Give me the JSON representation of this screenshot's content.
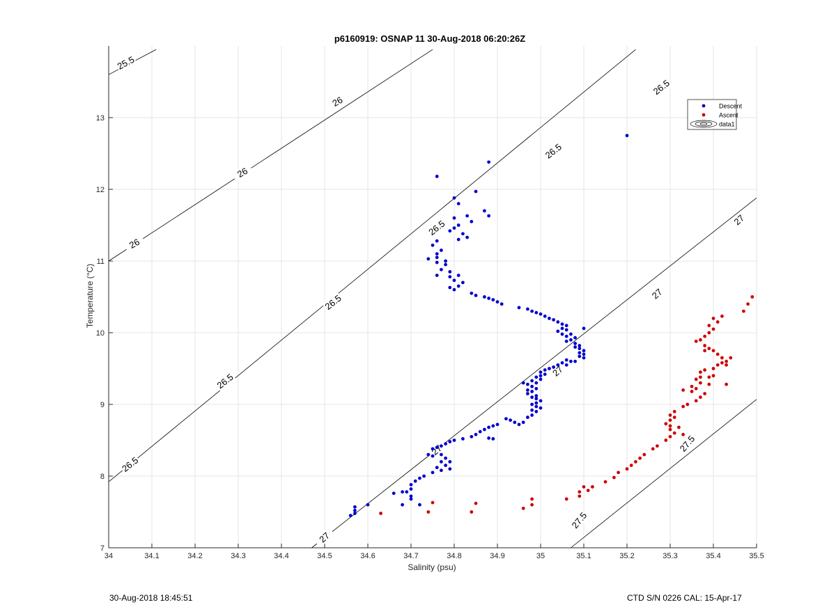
{
  "chart_data": {
    "type": "scatter",
    "title": "p6160919: OSNAP 11 30-Aug-2018 06:20:26Z",
    "xlabel": "Salinity (psu)",
    "ylabel": "Temperature (°C)",
    "xlim": [
      34,
      35.5
    ],
    "ylim": [
      7,
      14
    ],
    "xticks": [
      34,
      34.1,
      34.2,
      34.3,
      34.4,
      34.5,
      34.6,
      34.7,
      34.8,
      34.9,
      35,
      35.1,
      35.2,
      35.3,
      35.4,
      35.5
    ],
    "xtick_labels": [
      "34",
      "34.1",
      "34.2",
      "34.3",
      "34.4",
      "34.5",
      "34.6",
      "34.7",
      "34.8",
      "34.9",
      "35",
      "35.1",
      "35.2",
      "35.3",
      "35.4",
      "35.5"
    ],
    "yticks": [
      7,
      8,
      9,
      10,
      11,
      12,
      13
    ],
    "ytick_labels": [
      "7",
      "8",
      "9",
      "10",
      "11",
      "12",
      "13"
    ],
    "grid": true,
    "legend": {
      "placement": "top-right",
      "entries": [
        {
          "label": "Descent",
          "color": "#0000d0",
          "marker": "dot"
        },
        {
          "label": "Ascent",
          "color": "#d00000",
          "marker": "dot"
        },
        {
          "label": "data1",
          "color": "#000000",
          "marker": "contour"
        }
      ]
    },
    "contours": [
      {
        "value": "25.5",
        "points": [
          [
            34,
            13.6
          ],
          [
            34.11,
            13.95
          ]
        ]
      },
      {
        "value": "26",
        "points": [
          [
            34,
            11
          ],
          [
            34.75,
            13.95
          ]
        ]
      },
      {
        "value": "26.5",
        "points": [
          [
            34,
            7.92
          ],
          [
            35.22,
            13.95
          ]
        ]
      },
      {
        "value": "27",
        "points": [
          [
            34.47,
            7
          ],
          [
            35.5,
            11.88
          ]
        ]
      },
      {
        "value": "27.5",
        "points": [
          [
            35.07,
            7
          ],
          [
            35.5,
            9.07
          ]
        ]
      }
    ],
    "contour_labels": [
      {
        "text": "25.5",
        "x": 34.04,
        "y": 13.76,
        "angle": -28
      },
      {
        "text": "26",
        "x": 34.06,
        "y": 11.24,
        "angle": -30
      },
      {
        "text": "26",
        "x": 34.31,
        "y": 12.23,
        "angle": -30
      },
      {
        "text": "26",
        "x": 34.53,
        "y": 13.22,
        "angle": -30
      },
      {
        "text": "26.5",
        "x": 34.05,
        "y": 8.16,
        "angle": -38
      },
      {
        "text": "26.5",
        "x": 34.27,
        "y": 9.32,
        "angle": -38
      },
      {
        "text": "26.5",
        "x": 34.52,
        "y": 10.42,
        "angle": -38
      },
      {
        "text": "26.5",
        "x": 34.76,
        "y": 11.46,
        "angle": -38
      },
      {
        "text": "26.5",
        "x": 35.03,
        "y": 12.53,
        "angle": -38
      },
      {
        "text": "26.5",
        "x": 35.28,
        "y": 13.42,
        "angle": -38
      },
      {
        "text": "27",
        "x": 34.5,
        "y": 7.14,
        "angle": -42
      },
      {
        "text": "27",
        "x": 34.76,
        "y": 8.36,
        "angle": -42
      },
      {
        "text": "27",
        "x": 35.04,
        "y": 9.46,
        "angle": -42
      },
      {
        "text": "27",
        "x": 35.27,
        "y": 10.54,
        "angle": -42
      },
      {
        "text": "27",
        "x": 35.46,
        "y": 11.57,
        "angle": -42
      },
      {
        "text": "27.5",
        "x": 35.09,
        "y": 7.38,
        "angle": -50
      },
      {
        "text": "27.5",
        "x": 35.34,
        "y": 8.45,
        "angle": -50
      }
    ],
    "series": [
      {
        "name": "Descent",
        "color": "#0000d0",
        "points": [
          [
            35.2,
            12.75
          ],
          [
            34.88,
            12.38
          ],
          [
            34.76,
            12.18
          ],
          [
            34.85,
            11.97
          ],
          [
            34.8,
            11.88
          ],
          [
            34.81,
            11.8
          ],
          [
            34.87,
            11.7
          ],
          [
            34.83,
            11.63
          ],
          [
            34.8,
            11.6
          ],
          [
            34.88,
            11.63
          ],
          [
            34.84,
            11.55
          ],
          [
            34.81,
            11.5
          ],
          [
            34.8,
            11.46
          ],
          [
            34.79,
            11.42
          ],
          [
            34.82,
            11.38
          ],
          [
            34.83,
            11.33
          ],
          [
            34.81,
            11.3
          ],
          [
            34.76,
            11.28
          ],
          [
            34.75,
            11.22
          ],
          [
            34.77,
            11.15
          ],
          [
            34.76,
            11.1
          ],
          [
            34.76,
            11.05
          ],
          [
            34.74,
            11.03
          ],
          [
            34.78,
            11.0
          ],
          [
            34.76,
            10.98
          ],
          [
            34.78,
            10.95
          ],
          [
            34.77,
            10.88
          ],
          [
            34.79,
            10.85
          ],
          [
            34.76,
            10.8
          ],
          [
            34.79,
            10.78
          ],
          [
            34.81,
            10.8
          ],
          [
            34.8,
            10.73
          ],
          [
            34.82,
            10.7
          ],
          [
            34.81,
            10.65
          ],
          [
            34.79,
            10.63
          ],
          [
            34.8,
            10.6
          ],
          [
            34.84,
            10.55
          ],
          [
            34.85,
            10.52
          ],
          [
            34.87,
            10.5
          ],
          [
            34.88,
            10.48
          ],
          [
            34.89,
            10.46
          ],
          [
            34.9,
            10.43
          ],
          [
            34.91,
            10.4
          ],
          [
            34.95,
            10.35
          ],
          [
            34.97,
            10.33
          ],
          [
            34.98,
            10.3
          ],
          [
            34.99,
            10.28
          ],
          [
            35.0,
            10.26
          ],
          [
            35.01,
            10.23
          ],
          [
            35.02,
            10.2
          ],
          [
            35.03,
            10.18
          ],
          [
            35.04,
            10.15
          ],
          [
            35.05,
            10.12
          ],
          [
            35.06,
            10.1
          ],
          [
            35.05,
            10.06
          ],
          [
            35.06,
            10.04
          ],
          [
            35.04,
            10.02
          ],
          [
            35.05,
            9.98
          ],
          [
            35.07,
            9.98
          ],
          [
            35.06,
            9.95
          ],
          [
            35.08,
            9.93
          ],
          [
            35.07,
            9.9
          ],
          [
            35.06,
            9.88
          ],
          [
            35.08,
            9.85
          ],
          [
            35.09,
            9.82
          ],
          [
            35.08,
            9.8
          ],
          [
            35.09,
            9.78
          ],
          [
            35.1,
            9.75
          ],
          [
            35.09,
            9.72
          ],
          [
            35.1,
            9.7
          ],
          [
            35.09,
            9.67
          ],
          [
            35.1,
            9.65
          ],
          [
            35.1,
            10.06
          ],
          [
            35.08,
            9.6
          ],
          [
            35.06,
            9.62
          ],
          [
            35.07,
            9.6
          ],
          [
            35.05,
            9.58
          ],
          [
            35.06,
            9.55
          ],
          [
            35.04,
            9.55
          ],
          [
            35.03,
            9.52
          ],
          [
            35.02,
            9.5
          ],
          [
            35.01,
            9.48
          ],
          [
            35.0,
            9.45
          ],
          [
            35.01,
            9.42
          ],
          [
            35.0,
            9.4
          ],
          [
            34.99,
            9.38
          ],
          [
            35.0,
            9.35
          ],
          [
            34.98,
            9.33
          ],
          [
            34.99,
            9.3
          ],
          [
            34.97,
            9.28
          ],
          [
            34.98,
            9.25
          ],
          [
            34.99,
            9.22
          ],
          [
            34.97,
            9.2
          ],
          [
            34.96,
            9.3
          ],
          [
            34.98,
            9.18
          ],
          [
            34.97,
            9.15
          ],
          [
            34.99,
            9.12
          ],
          [
            34.98,
            9.1
          ],
          [
            34.99,
            9.08
          ],
          [
            35.0,
            9.05
          ],
          [
            34.99,
            9.02
          ],
          [
            34.98,
            9.0
          ],
          [
            34.99,
            8.97
          ],
          [
            35.0,
            8.95
          ],
          [
            34.98,
            8.92
          ],
          [
            34.99,
            8.9
          ],
          [
            34.98,
            8.85
          ],
          [
            34.97,
            8.82
          ],
          [
            34.96,
            8.75
          ],
          [
            34.95,
            8.72
          ],
          [
            34.94,
            8.75
          ],
          [
            34.93,
            8.78
          ],
          [
            34.92,
            8.8
          ],
          [
            34.9,
            8.72
          ],
          [
            34.89,
            8.7
          ],
          [
            34.88,
            8.68
          ],
          [
            34.87,
            8.65
          ],
          [
            34.86,
            8.62
          ],
          [
            34.85,
            8.58
          ],
          [
            34.89,
            8.52
          ],
          [
            34.88,
            8.53
          ],
          [
            34.84,
            8.55
          ],
          [
            34.82,
            8.52
          ],
          [
            34.8,
            8.5
          ],
          [
            34.79,
            8.48
          ],
          [
            34.78,
            8.45
          ],
          [
            34.77,
            8.42
          ],
          [
            34.76,
            8.4
          ],
          [
            34.75,
            8.38
          ],
          [
            34.74,
            8.3
          ],
          [
            34.75,
            8.28
          ],
          [
            34.77,
            8.3
          ],
          [
            34.78,
            8.25
          ],
          [
            34.79,
            8.2
          ],
          [
            34.77,
            8.2
          ],
          [
            34.78,
            8.15
          ],
          [
            34.76,
            8.12
          ],
          [
            34.79,
            8.1
          ],
          [
            34.77,
            8.08
          ],
          [
            34.75,
            8.05
          ],
          [
            34.73,
            8.0
          ],
          [
            34.72,
            7.97
          ],
          [
            34.71,
            7.93
          ],
          [
            34.7,
            7.88
          ],
          [
            34.7,
            7.82
          ],
          [
            34.69,
            7.78
          ],
          [
            34.68,
            7.78
          ],
          [
            34.66,
            7.76
          ],
          [
            34.7,
            7.72
          ],
          [
            34.7,
            7.68
          ],
          [
            34.72,
            7.6
          ],
          [
            34.68,
            7.6
          ],
          [
            34.6,
            7.6
          ],
          [
            34.57,
            7.57
          ],
          [
            34.57,
            7.52
          ],
          [
            34.57,
            7.48
          ],
          [
            34.56,
            7.45
          ]
        ]
      },
      {
        "name": "Ascent",
        "color": "#d00000",
        "points": [
          [
            35.49,
            10.5
          ],
          [
            35.48,
            10.4
          ],
          [
            35.47,
            10.3
          ],
          [
            35.42,
            10.23
          ],
          [
            35.4,
            10.2
          ],
          [
            35.41,
            10.15
          ],
          [
            35.39,
            10.1
          ],
          [
            35.4,
            10.05
          ],
          [
            35.39,
            10.0
          ],
          [
            35.38,
            9.95
          ],
          [
            35.37,
            9.9
          ],
          [
            35.36,
            9.88
          ],
          [
            35.38,
            9.82
          ],
          [
            35.39,
            9.78
          ],
          [
            35.38,
            9.75
          ],
          [
            35.4,
            9.75
          ],
          [
            35.41,
            9.7
          ],
          [
            35.42,
            9.65
          ],
          [
            35.44,
            9.65
          ],
          [
            35.43,
            9.6
          ],
          [
            35.42,
            9.58
          ],
          [
            35.41,
            9.55
          ],
          [
            35.43,
            9.55
          ],
          [
            35.4,
            9.5
          ],
          [
            35.38,
            9.48
          ],
          [
            35.37,
            9.45
          ],
          [
            35.4,
            9.4
          ],
          [
            35.39,
            9.38
          ],
          [
            35.37,
            9.38
          ],
          [
            35.36,
            9.35
          ],
          [
            35.37,
            9.3
          ],
          [
            35.39,
            9.28
          ],
          [
            35.43,
            9.28
          ],
          [
            35.35,
            9.25
          ],
          [
            35.36,
            9.22
          ],
          [
            35.33,
            9.2
          ],
          [
            35.35,
            9.18
          ],
          [
            35.38,
            9.15
          ],
          [
            35.37,
            9.1
          ],
          [
            35.36,
            9.05
          ],
          [
            35.34,
            9.0
          ],
          [
            35.33,
            8.97
          ],
          [
            35.31,
            8.9
          ],
          [
            35.3,
            8.85
          ],
          [
            35.31,
            8.82
          ],
          [
            35.3,
            8.78
          ],
          [
            35.29,
            8.73
          ],
          [
            35.3,
            8.7
          ],
          [
            35.32,
            8.68
          ],
          [
            35.3,
            8.65
          ],
          [
            35.31,
            8.6
          ],
          [
            35.33,
            8.58
          ],
          [
            35.3,
            8.55
          ],
          [
            35.29,
            8.5
          ],
          [
            35.27,
            8.42
          ],
          [
            35.26,
            8.38
          ],
          [
            35.24,
            8.3
          ],
          [
            35.23,
            8.25
          ],
          [
            35.22,
            8.2
          ],
          [
            35.21,
            8.15
          ],
          [
            35.2,
            8.1
          ],
          [
            35.18,
            8.05
          ],
          [
            35.17,
            7.98
          ],
          [
            35.15,
            7.92
          ],
          [
            35.12,
            7.85
          ],
          [
            35.1,
            7.85
          ],
          [
            35.11,
            7.8
          ],
          [
            35.09,
            7.78
          ],
          [
            35.09,
            7.72
          ],
          [
            35.06,
            7.68
          ],
          [
            34.98,
            7.68
          ],
          [
            34.98,
            7.6
          ],
          [
            34.96,
            7.55
          ],
          [
            34.85,
            7.62
          ],
          [
            34.84,
            7.5
          ],
          [
            34.75,
            7.63
          ],
          [
            34.74,
            7.5
          ],
          [
            34.63,
            7.48
          ]
        ]
      }
    ]
  },
  "footer": {
    "left": "30-Aug-2018 18:45:51",
    "right": "CTD S/N 0226  CAL: 15-Apr-17"
  }
}
